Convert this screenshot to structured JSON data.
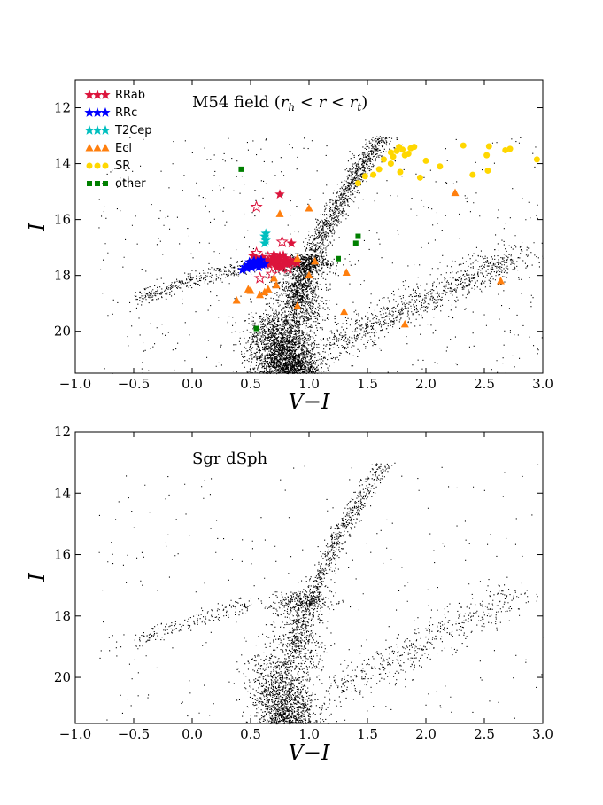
{
  "chart_data": [
    {
      "type": "scatter",
      "title": "M54 field (r_h < r < r_t)",
      "title_parts": {
        "prefix": "M54 field (",
        "r_h": "r",
        "r_h_sub": "h",
        "lt1": " < ",
        "r": "r",
        "lt2": " < ",
        "r_t": "r",
        "r_t_sub": "t",
        "suffix": ")"
      },
      "xlabel": "V−I",
      "ylabel": "I",
      "xlim": [
        -1.0,
        3.0
      ],
      "ylim": [
        21.5,
        11.0
      ],
      "y_inverted": true,
      "xticks": [
        -1.0,
        -0.5,
        0.0,
        0.5,
        1.0,
        1.5,
        2.0,
        2.5,
        3.0
      ],
      "xtick_labels": [
        "−1.0",
        "−0.5",
        "0.0",
        "0.5",
        "1.0",
        "1.5",
        "2.0",
        "2.5",
        "3.0"
      ],
      "yticks": [
        12,
        14,
        16,
        18,
        20
      ],
      "ytick_labels": [
        "12",
        "14",
        "16",
        "18",
        "20"
      ],
      "legend": [
        {
          "label": "RRab",
          "marker": "star",
          "color": "#dc143c",
          "glyph": "★★★"
        },
        {
          "label": "RRc",
          "marker": "star",
          "color": "#0000ff",
          "glyph": "★★★"
        },
        {
          "label": "T2Cep",
          "marker": "star",
          "color": "#00bfbf",
          "glyph": "★★★"
        },
        {
          "label": "Ecl",
          "marker": "triangle",
          "color": "#ff7f0e",
          "glyph": "▲▲▲"
        },
        {
          "label": "SR",
          "marker": "circle",
          "color": "#ffd700",
          "glyph": "●●●"
        },
        {
          "label": "other",
          "marker": "square",
          "color": "#008000",
          "glyph": "■■■"
        }
      ],
      "series": [
        {
          "name": "RRab",
          "marker": "star",
          "color": "#dc143c",
          "points": [
            [
              0.65,
              17.45
            ],
            [
              0.68,
              17.55
            ],
            [
              0.7,
              17.4
            ],
            [
              0.72,
              17.5
            ],
            [
              0.74,
              17.6
            ],
            [
              0.76,
              17.45
            ],
            [
              0.78,
              17.52
            ],
            [
              0.8,
              17.38
            ],
            [
              0.82,
              17.55
            ],
            [
              0.66,
              17.62
            ],
            [
              0.69,
              17.35
            ],
            [
              0.73,
              17.42
            ],
            [
              0.75,
              17.3
            ],
            [
              0.77,
              17.65
            ],
            [
              0.79,
              17.48
            ],
            [
              0.81,
              17.6
            ],
            [
              0.67,
              17.5
            ],
            [
              0.71,
              17.58
            ],
            [
              0.64,
              17.55
            ],
            [
              0.84,
              17.45
            ],
            [
              0.86,
              17.55
            ],
            [
              0.62,
              17.5
            ],
            [
              0.6,
              17.58
            ],
            [
              0.88,
              17.5
            ],
            [
              0.72,
              17.7
            ],
            [
              0.76,
              17.75
            ],
            [
              0.7,
              17.25
            ],
            [
              0.78,
              17.28
            ],
            [
              0.6,
              17.35
            ],
            [
              0.55,
              17.4
            ],
            [
              0.52,
              17.3
            ],
            [
              0.75,
              15.1
            ],
            [
              0.85,
              16.85
            ],
            [
              0.9,
              17.55
            ],
            [
              0.58,
              17.62
            ]
          ]
        },
        {
          "name": "RRab (open)",
          "marker": "star-open",
          "color": "#dc143c",
          "points": [
            [
              0.55,
              15.55
            ],
            [
              0.77,
              16.8
            ],
            [
              0.55,
              17.2
            ],
            [
              0.68,
              17.95
            ],
            [
              0.82,
              17.75
            ],
            [
              0.58,
              18.1
            ],
            [
              0.65,
              17.35
            ]
          ]
        },
        {
          "name": "RRc",
          "marker": "star",
          "color": "#0000ff",
          "points": [
            [
              0.45,
              17.7
            ],
            [
              0.48,
              17.62
            ],
            [
              0.5,
              17.68
            ],
            [
              0.52,
              17.55
            ],
            [
              0.54,
              17.6
            ],
            [
              0.56,
              17.5
            ],
            [
              0.58,
              17.55
            ],
            [
              0.47,
              17.75
            ],
            [
              0.51,
              17.72
            ],
            [
              0.53,
              17.48
            ],
            [
              0.55,
              17.65
            ],
            [
              0.57,
              17.7
            ],
            [
              0.59,
              17.45
            ],
            [
              0.43,
              17.8
            ],
            [
              0.49,
              17.52
            ],
            [
              0.6,
              17.62
            ],
            [
              0.62,
              17.6
            ]
          ]
        },
        {
          "name": "T2Cep",
          "marker": "star",
          "color": "#00bfbf",
          "points": [
            [
              0.62,
              16.6
            ],
            [
              0.63,
              16.5
            ],
            [
              0.63,
              16.75
            ],
            [
              0.62,
              16.85
            ]
          ]
        },
        {
          "name": "Ecl",
          "marker": "triangle",
          "color": "#ff7f0e",
          "points": [
            [
              0.75,
              15.8
            ],
            [
              1.0,
              15.6
            ],
            [
              0.9,
              17.4
            ],
            [
              1.05,
              17.5
            ],
            [
              1.0,
              18.0
            ],
            [
              1.32,
              17.9
            ],
            [
              0.72,
              18.35
            ],
            [
              0.65,
              18.5
            ],
            [
              0.5,
              18.55
            ],
            [
              0.58,
              18.7
            ],
            [
              0.62,
              18.6
            ],
            [
              0.48,
              18.5
            ],
            [
              0.38,
              18.9
            ],
            [
              0.9,
              19.1
            ],
            [
              1.3,
              19.3
            ],
            [
              1.82,
              19.75
            ],
            [
              2.25,
              15.05
            ],
            [
              2.64,
              18.2
            ],
            [
              0.7,
              18.1
            ]
          ]
        },
        {
          "name": "SR",
          "marker": "circle",
          "color": "#ffd700",
          "points": [
            [
              1.42,
              14.7
            ],
            [
              1.48,
              14.45
            ],
            [
              1.55,
              14.4
            ],
            [
              1.6,
              14.2
            ],
            [
              1.64,
              13.85
            ],
            [
              1.7,
              13.6
            ],
            [
              1.72,
              13.75
            ],
            [
              1.75,
              13.55
            ],
            [
              1.77,
              13.4
            ],
            [
              1.8,
              13.5
            ],
            [
              1.82,
              13.7
            ],
            [
              1.85,
              13.65
            ],
            [
              1.87,
              13.45
            ],
            [
              1.7,
              14.0
            ],
            [
              1.78,
              14.3
            ],
            [
              1.9,
              13.4
            ],
            [
              1.95,
              14.5
            ],
            [
              2.0,
              13.9
            ],
            [
              2.12,
              14.1
            ],
            [
              2.32,
              13.35
            ],
            [
              2.4,
              14.4
            ],
            [
              2.52,
              13.7
            ],
            [
              2.54,
              13.38
            ],
            [
              2.68,
              13.52
            ],
            [
              2.72,
              13.47
            ],
            [
              2.95,
              13.85
            ],
            [
              2.53,
              14.25
            ]
          ]
        },
        {
          "name": "other",
          "marker": "square",
          "color": "#008000",
          "points": [
            [
              0.42,
              14.2
            ],
            [
              0.55,
              19.9
            ],
            [
              1.25,
              17.4
            ],
            [
              1.42,
              16.6
            ],
            [
              1.4,
              16.85
            ]
          ]
        }
      ],
      "background_stars": "black dots (field stars), thousands of points"
    },
    {
      "type": "scatter",
      "title": "Sgr dSph",
      "xlabel": "V−I",
      "ylabel": "I",
      "xlim": [
        -1.0,
        3.0
      ],
      "ylim": [
        21.5,
        12.0
      ],
      "y_inverted": true,
      "xticks": [
        -1.0,
        -0.5,
        0.0,
        0.5,
        1.0,
        1.5,
        2.0,
        2.5,
        3.0
      ],
      "xtick_labels": [
        "−1.0",
        "−0.5",
        "0.0",
        "0.5",
        "1.0",
        "1.5",
        "2.0",
        "2.5",
        "3.0"
      ],
      "yticks": [
        12,
        14,
        16,
        18,
        20
      ],
      "ytick_labels": [
        "12",
        "14",
        "16",
        "18",
        "20"
      ],
      "background_stars": "black dots (field stars), thousands of points"
    }
  ]
}
